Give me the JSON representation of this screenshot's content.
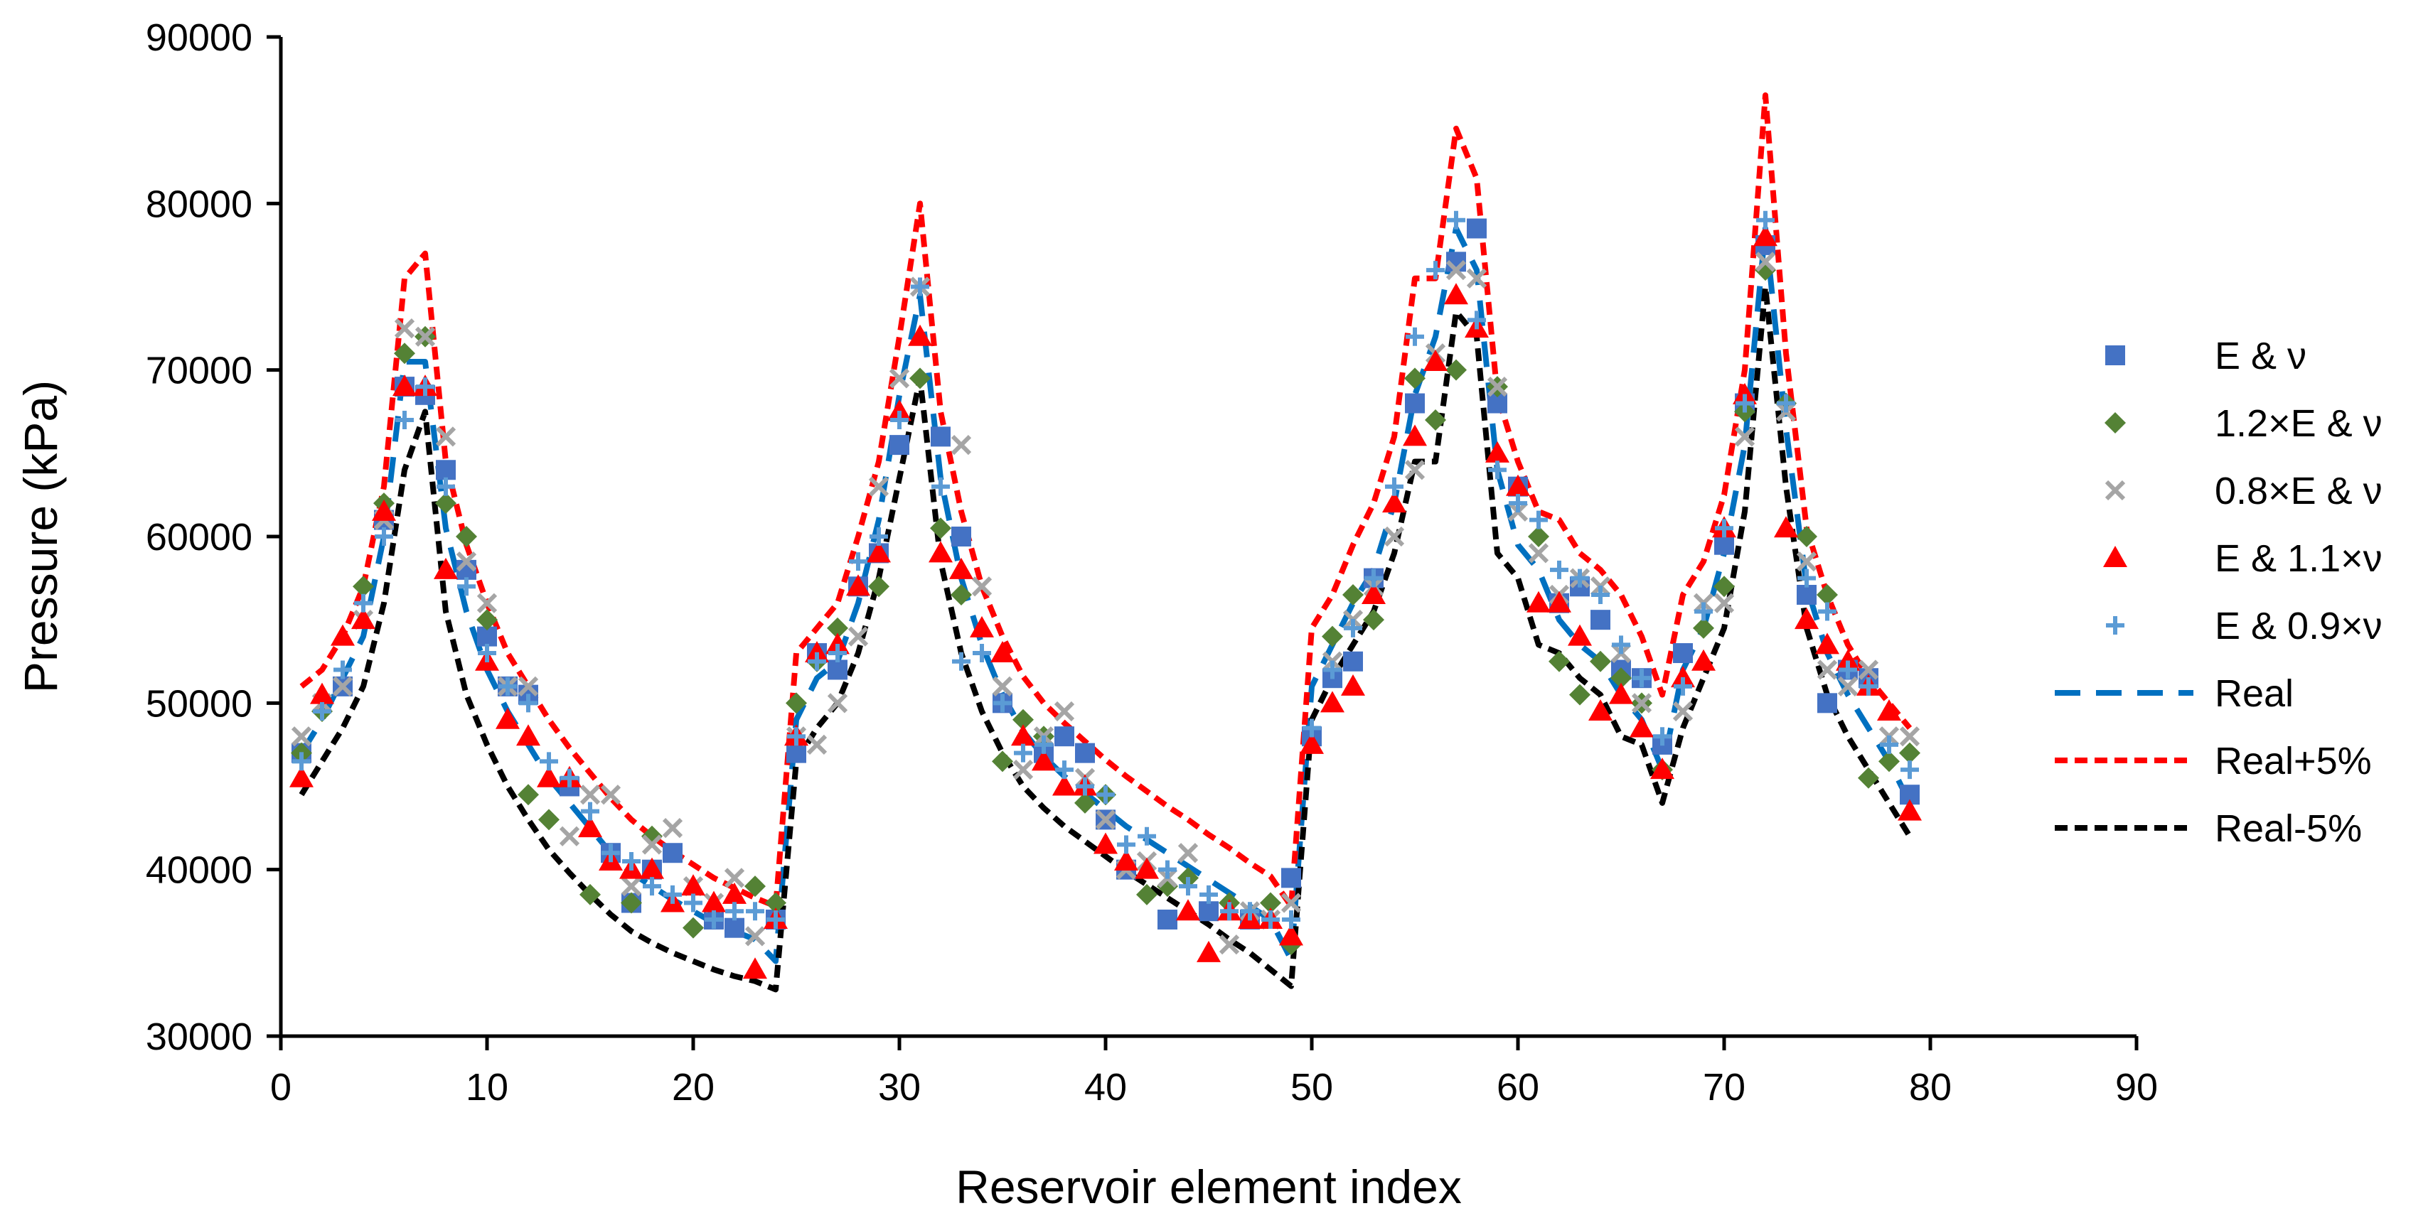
{
  "chart_data": {
    "type": "scatter",
    "title": "",
    "xlabel": "Reservoir element index",
    "ylabel": "Pressure (kPa)",
    "xlim": [
      0,
      90
    ],
    "ylim": [
      30000,
      90000
    ],
    "xticks": [
      0,
      10,
      20,
      30,
      40,
      50,
      60,
      70,
      80,
      90
    ],
    "yticks": [
      30000,
      40000,
      50000,
      60000,
      70000,
      80000,
      90000
    ],
    "grid": false,
    "legend_position": "right",
    "series": [
      {
        "name": "E & ν",
        "kind": "marker",
        "marker": "square",
        "color": "#4472C4",
        "x": [
          1,
          3,
          5,
          6,
          7,
          8,
          9,
          10,
          11,
          12,
          14,
          16,
          17,
          18,
          19,
          21,
          22,
          24,
          25,
          26,
          27,
          28,
          29,
          30,
          32,
          33,
          35,
          37,
          38,
          39,
          40,
          41,
          43,
          45,
          47,
          49,
          50,
          51,
          52,
          53,
          55,
          57,
          58,
          59,
          60,
          62,
          63,
          64,
          65,
          66,
          67,
          68,
          70,
          71,
          72,
          74,
          75,
          76,
          77,
          79
        ],
        "y": [
          47000,
          51000,
          61000,
          69000,
          68500,
          64000,
          58000,
          54000,
          51000,
          50500,
          45000,
          41000,
          38000,
          40000,
          41000,
          37000,
          36500,
          37000,
          47000,
          53000,
          52000,
          57000,
          59000,
          65500,
          66000,
          60000,
          50000,
          47000,
          48000,
          47000,
          43000,
          40000,
          37000,
          37500,
          37000,
          39500,
          48000,
          51500,
          52500,
          57500,
          68000,
          76500,
          78500,
          68000,
          63000,
          56000,
          57000,
          55000,
          52000,
          51500,
          47500,
          53000,
          59500,
          68000,
          77500,
          56500,
          50000,
          52000,
          51500,
          44500
        ]
      },
      {
        "name": "1.2×E & ν",
        "kind": "marker",
        "marker": "diamond",
        "color": "#548235",
        "x": [
          1,
          2,
          4,
          5,
          6,
          7,
          8,
          9,
          10,
          12,
          13,
          15,
          17,
          18,
          20,
          23,
          24,
          25,
          26,
          27,
          29,
          31,
          32,
          33,
          35,
          36,
          37,
          39,
          40,
          42,
          43,
          44,
          46,
          48,
          49,
          51,
          52,
          53,
          55,
          56,
          57,
          59,
          61,
          62,
          63,
          64,
          65,
          66,
          67,
          69,
          70,
          71,
          72,
          73,
          74,
          75,
          77,
          78,
          79
        ],
        "y": [
          47000,
          49500,
          57000,
          62000,
          71000,
          72000,
          62000,
          60000,
          55000,
          44500,
          43000,
          38500,
          38000,
          42000,
          36500,
          39000,
          38000,
          50000,
          52500,
          54500,
          57000,
          69500,
          60500,
          56500,
          46500,
          49000,
          48000,
          44000,
          44500,
          38500,
          39000,
          39500,
          38000,
          38000,
          35500,
          54000,
          56500,
          55000,
          69500,
          67000,
          70000,
          69000,
          60000,
          52500,
          50500,
          52500,
          51500,
          50000,
          46000,
          54500,
          57000,
          67500,
          76000,
          68000,
          60000,
          56500,
          45500,
          46500,
          47000
        ]
      },
      {
        "name": "0.8×E & ν",
        "kind": "marker",
        "marker": "x",
        "color": "#A5A5A5",
        "x": [
          1,
          2,
          3,
          4,
          5,
          6,
          7,
          8,
          9,
          10,
          11,
          12,
          14,
          15,
          16,
          17,
          18,
          19,
          20,
          21,
          22,
          23,
          25,
          26,
          27,
          28,
          29,
          30,
          31,
          33,
          34,
          35,
          36,
          37,
          38,
          39,
          40,
          41,
          42,
          43,
          44,
          46,
          47,
          48,
          49,
          51,
          52,
          53,
          54,
          55,
          56,
          57,
          58,
          59,
          60,
          61,
          62,
          63,
          64,
          65,
          66,
          68,
          69,
          70,
          71,
          72,
          73,
          74,
          75,
          76,
          77,
          78,
          79
        ],
        "y": [
          48000,
          50000,
          51000,
          55000,
          61000,
          72500,
          72000,
          66000,
          58500,
          56000,
          51000,
          51000,
          42000,
          44500,
          44500,
          39000,
          41500,
          42500,
          39000,
          38000,
          39500,
          36000,
          48000,
          47500,
          50000,
          54000,
          63000,
          69500,
          75000,
          65500,
          57000,
          51000,
          46000,
          48000,
          49500,
          45500,
          43000,
          40000,
          40500,
          39500,
          41000,
          35500,
          37500,
          37000,
          38000,
          52500,
          55000,
          57000,
          60000,
          64000,
          71000,
          76000,
          75500,
          69000,
          61500,
          59000,
          56500,
          57500,
          57000,
          53000,
          50000,
          49500,
          56000,
          56000,
          66000,
          76500,
          67500,
          58500,
          52000,
          51000,
          52000,
          48000,
          48000
        ]
      },
      {
        "name": "E & 1.1×ν",
        "kind": "marker",
        "marker": "triangle",
        "color": "#FF0000",
        "x": [
          1,
          2,
          3,
          4,
          5,
          6,
          7,
          8,
          10,
          11,
          12,
          13,
          14,
          15,
          16,
          17,
          18,
          19,
          20,
          21,
          22,
          23,
          24,
          25,
          26,
          27,
          28,
          29,
          30,
          31,
          32,
          33,
          34,
          35,
          36,
          37,
          38,
          39,
          40,
          41,
          42,
          44,
          45,
          46,
          47,
          48,
          49,
          50,
          51,
          52,
          53,
          54,
          55,
          56,
          57,
          58,
          59,
          60,
          61,
          62,
          63,
          64,
          65,
          66,
          67,
          68,
          69,
          70,
          71,
          72,
          73,
          74,
          75,
          76,
          77,
          78,
          79
        ],
        "y": [
          45500,
          50500,
          54000,
          55000,
          61500,
          69000,
          69000,
          58000,
          52500,
          49000,
          48000,
          45500,
          45500,
          42500,
          40500,
          40000,
          40000,
          38000,
          39000,
          38000,
          38500,
          34000,
          37000,
          48000,
          53000,
          53500,
          57000,
          59000,
          67500,
          72000,
          59000,
          58000,
          54500,
          53000,
          48000,
          46500,
          45000,
          45000,
          41500,
          40500,
          40000,
          37500,
          35000,
          37500,
          37000,
          37000,
          36000,
          47500,
          50000,
          51000,
          56500,
          62000,
          66000,
          70500,
          74500,
          72500,
          65000,
          63000,
          56000,
          56000,
          54000,
          49500,
          50500,
          48500,
          46000,
          51500,
          52500,
          60500,
          68500,
          78000,
          60500,
          55000,
          53500,
          52500,
          51000,
          49500,
          43500
        ]
      },
      {
        "name": "E & 0.9×ν",
        "kind": "marker",
        "marker": "plus",
        "color": "#5B9BD5",
        "x": [
          1,
          2,
          3,
          4,
          5,
          6,
          7,
          8,
          9,
          10,
          11,
          12,
          13,
          14,
          15,
          16,
          17,
          18,
          19,
          20,
          21,
          22,
          23,
          24,
          25,
          26,
          27,
          28,
          29,
          30,
          31,
          32,
          33,
          34,
          35,
          36,
          37,
          38,
          39,
          40,
          41,
          42,
          43,
          44,
          45,
          46,
          47,
          48,
          49,
          50,
          51,
          52,
          53,
          54,
          55,
          56,
          57,
          58,
          59,
          60,
          61,
          62,
          63,
          64,
          65,
          66,
          67,
          68,
          69,
          70,
          71,
          72,
          73,
          74,
          75,
          76,
          77,
          78,
          79
        ],
        "y": [
          46500,
          49500,
          52000,
          56000,
          60000,
          67000,
          69000,
          63000,
          57000,
          53000,
          51000,
          50000,
          46500,
          45500,
          43500,
          41000,
          40500,
          39000,
          38500,
          38000,
          37000,
          37500,
          37500,
          37000,
          48000,
          52500,
          53000,
          58500,
          60000,
          67000,
          75000,
          63000,
          52500,
          53000,
          50000,
          47000,
          47500,
          46000,
          45000,
          44500,
          41500,
          42000,
          40000,
          39000,
          38500,
          37500,
          37500,
          37000,
          37000,
          48500,
          52000,
          54500,
          57500,
          63000,
          72000,
          76000,
          79000,
          73000,
          64000,
          62000,
          61000,
          58000,
          57500,
          56500,
          53500,
          51500,
          48000,
          51000,
          55500,
          60500,
          68000,
          79000,
          68000,
          57500,
          55500,
          52000,
          51000,
          47500,
          46000
        ]
      },
      {
        "name": "Real",
        "kind": "line",
        "dash": "long",
        "color": "#0070C0",
        "x": [
          1,
          2,
          3,
          4,
          5,
          6,
          7,
          8,
          9,
          10,
          11,
          12,
          13,
          14,
          15,
          16,
          17,
          18,
          19,
          20,
          21,
          22,
          23,
          24,
          25,
          26,
          27,
          28,
          29,
          30,
          31,
          32,
          33,
          34,
          35,
          36,
          37,
          38,
          39,
          40,
          41,
          42,
          43,
          44,
          45,
          46,
          47,
          48,
          49,
          50,
          51,
          52,
          53,
          54,
          55,
          56,
          57,
          58,
          59,
          60,
          61,
          62,
          63,
          64,
          65,
          66,
          67,
          68,
          69,
          70,
          71,
          72,
          73,
          74,
          75,
          76,
          77,
          78,
          79
        ],
        "y": [
          47000,
          49000,
          51500,
          54000,
          60000,
          70500,
          70500,
          60500,
          55500,
          52000,
          49500,
          47500,
          45500,
          44000,
          42500,
          41000,
          39800,
          39000,
          38200,
          37500,
          36800,
          36300,
          35800,
          34500,
          49000,
          51500,
          52500,
          56000,
          61000,
          68500,
          74500,
          63500,
          57500,
          53500,
          50500,
          48300,
          46800,
          45600,
          44600,
          43600,
          42600,
          41800,
          41000,
          40200,
          39400,
          38600,
          37800,
          37000,
          34600,
          51000,
          53500,
          56000,
          58000,
          62000,
          68500,
          72000,
          78500,
          76000,
          64000,
          59500,
          58000,
          55000,
          53500,
          52500,
          50500,
          49000,
          46000,
          52000,
          54500,
          59000,
          65500,
          78500,
          66500,
          57000,
          53000,
          50500,
          48500,
          46500,
          44000
        ]
      },
      {
        "name": "Real+5%",
        "kind": "line",
        "dash": "short",
        "color": "#FF0000",
        "x": [
          1,
          2,
          3,
          4,
          5,
          6,
          7,
          8,
          9,
          10,
          11,
          12,
          13,
          14,
          15,
          16,
          17,
          18,
          19,
          20,
          21,
          22,
          23,
          24,
          25,
          26,
          27,
          28,
          29,
          30,
          31,
          32,
          33,
          34,
          35,
          36,
          37,
          38,
          39,
          40,
          41,
          42,
          43,
          44,
          45,
          46,
          47,
          48,
          49,
          50,
          51,
          52,
          53,
          54,
          55,
          56,
          57,
          58,
          59,
          60,
          61,
          62,
          63,
          64,
          65,
          66,
          67,
          68,
          69,
          70,
          71,
          72,
          73,
          74,
          75,
          76,
          77,
          78,
          79
        ],
        "y": [
          51000,
          52000,
          54000,
          57000,
          63000,
          75500,
          77000,
          64500,
          59500,
          56000,
          53000,
          51000,
          49000,
          47300,
          45800,
          44300,
          43000,
          42000,
          41100,
          40300,
          39500,
          38900,
          38300,
          37800,
          53000,
          54500,
          56000,
          60000,
          64500,
          72000,
          80000,
          67500,
          61500,
          57000,
          54000,
          51600,
          50000,
          48800,
          47700,
          46600,
          45600,
          44700,
          43800,
          43000,
          42100,
          41300,
          40400,
          39600,
          37800,
          54500,
          56500,
          59500,
          62000,
          66000,
          75500,
          75500,
          84500,
          81500,
          68500,
          64500,
          61500,
          61000,
          59000,
          58000,
          56500,
          54000,
          50500,
          56500,
          58500,
          62500,
          70000,
          86500,
          71000,
          60500,
          56500,
          53500,
          51500,
          50000,
          48500
        ]
      },
      {
        "name": "Real-5%",
        "kind": "line",
        "dash": "short",
        "color": "#000000",
        "x": [
          1,
          2,
          3,
          4,
          5,
          6,
          7,
          8,
          9,
          10,
          11,
          12,
          13,
          14,
          15,
          16,
          17,
          18,
          19,
          20,
          21,
          22,
          23,
          24,
          25,
          26,
          27,
          28,
          29,
          30,
          31,
          32,
          33,
          34,
          35,
          36,
          37,
          38,
          39,
          40,
          41,
          42,
          43,
          44,
          45,
          46,
          47,
          48,
          49,
          50,
          51,
          52,
          53,
          54,
          55,
          56,
          57,
          58,
          59,
          60,
          61,
          62,
          63,
          64,
          65,
          66,
          67,
          68,
          69,
          70,
          71,
          72,
          73,
          74,
          75,
          76,
          77,
          78,
          79
        ],
        "y": [
          44500,
          46500,
          48500,
          51000,
          56000,
          64000,
          67500,
          55500,
          50500,
          47500,
          45000,
          43000,
          41200,
          39800,
          38500,
          37300,
          36300,
          35600,
          35000,
          34500,
          34000,
          33600,
          33300,
          32800,
          46500,
          48500,
          50000,
          53000,
          57500,
          63500,
          69500,
          58500,
          53000,
          49500,
          47000,
          45000,
          43700,
          42600,
          41700,
          40800,
          39900,
          39100,
          38300,
          37500,
          36700,
          35800,
          35000,
          34000,
          33000,
          49000,
          51500,
          53500,
          55500,
          59000,
          64500,
          64500,
          73500,
          72000,
          59000,
          57500,
          53500,
          53000,
          51500,
          50500,
          48000,
          47500,
          44000,
          48500,
          51500,
          54500,
          61500,
          75000,
          63000,
          54500,
          50500,
          48000,
          46000,
          44000,
          42000
        ]
      }
    ]
  }
}
